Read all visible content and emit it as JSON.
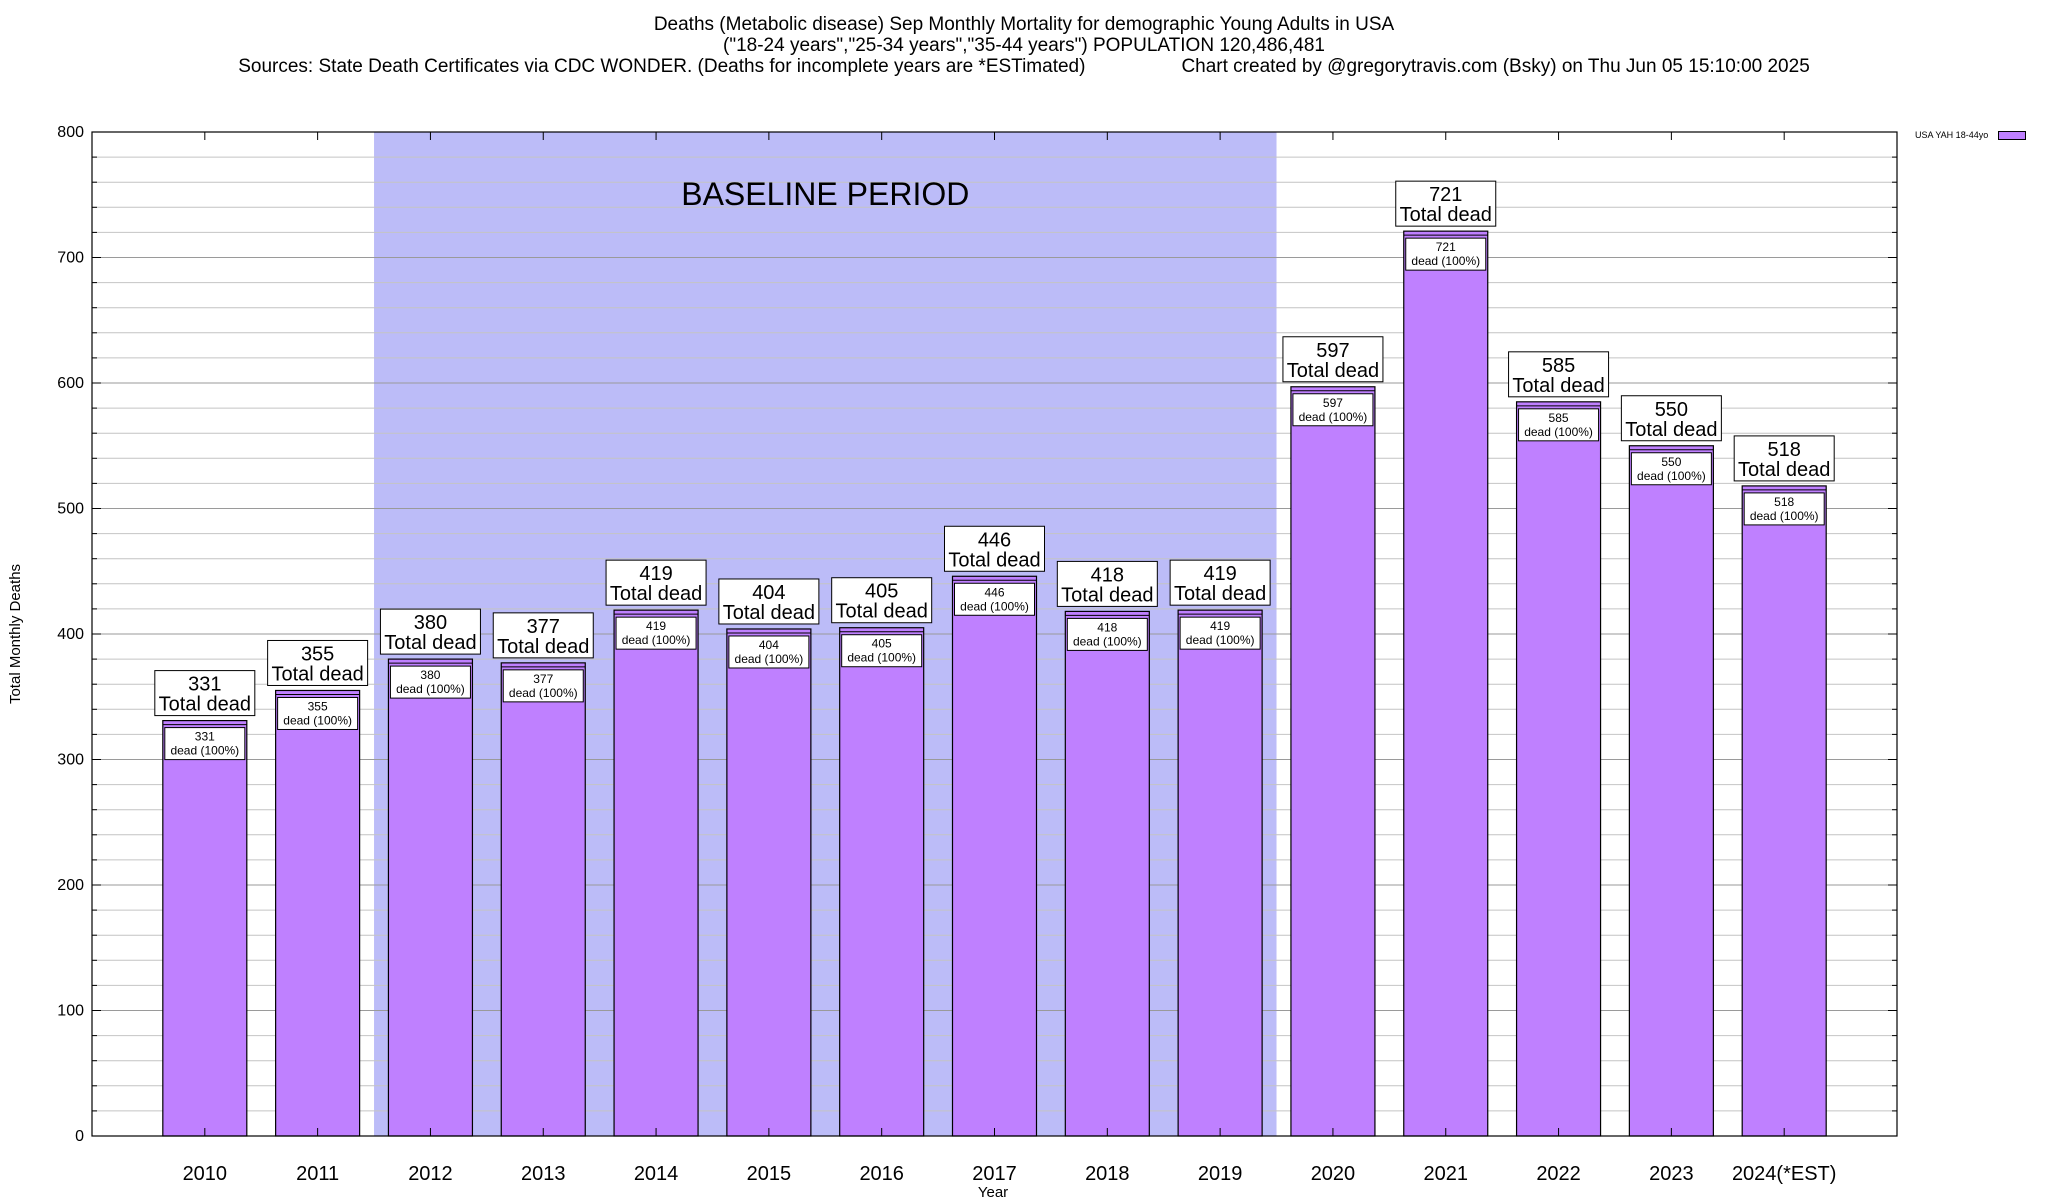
{
  "chart_data": {
    "type": "bar",
    "title": "Deaths (Metabolic disease) Sep Monthly Mortality for demographic Young Adults in USA",
    "subtitle": "(\"18-24 years\",\"25-34 years\",\"35-44 years\") POPULATION 120,486,481",
    "sources": "Sources: State Death Certificates via CDC WONDER. (Deaths for incomplete years are *ESTimated)",
    "credit": "Chart created by @gregorytravis.com (Bsky) on Thu Jun 05 15:10:00 2025",
    "xlabel": "Year",
    "ylabel": "Total Monthly Deaths",
    "ylim": [
      0,
      800
    ],
    "yticks": [
      0,
      100,
      200,
      300,
      400,
      500,
      600,
      700,
      800
    ],
    "categories": [
      "2010",
      "2011",
      "2012",
      "2013",
      "2014",
      "2015",
      "2016",
      "2017",
      "2018",
      "2019",
      "2020",
      "2021",
      "2022",
      "2023",
      "2024(*EST)"
    ],
    "series": [
      {
        "name": "USA YAH 18-44yo",
        "values": [
          331,
          355,
          380,
          377,
          419,
          404,
          405,
          446,
          418,
          419,
          597,
          721,
          585,
          550,
          518
        ],
        "color": "#bf80ff"
      }
    ],
    "bar_label_total": "Total dead",
    "bar_label_inner": "dead (100%)",
    "baseline": {
      "label": "BASELINE PERIOD",
      "from": "2012",
      "to": "2019",
      "color": "#bcbcf8"
    },
    "grid": true,
    "legend_position": "top-right"
  }
}
